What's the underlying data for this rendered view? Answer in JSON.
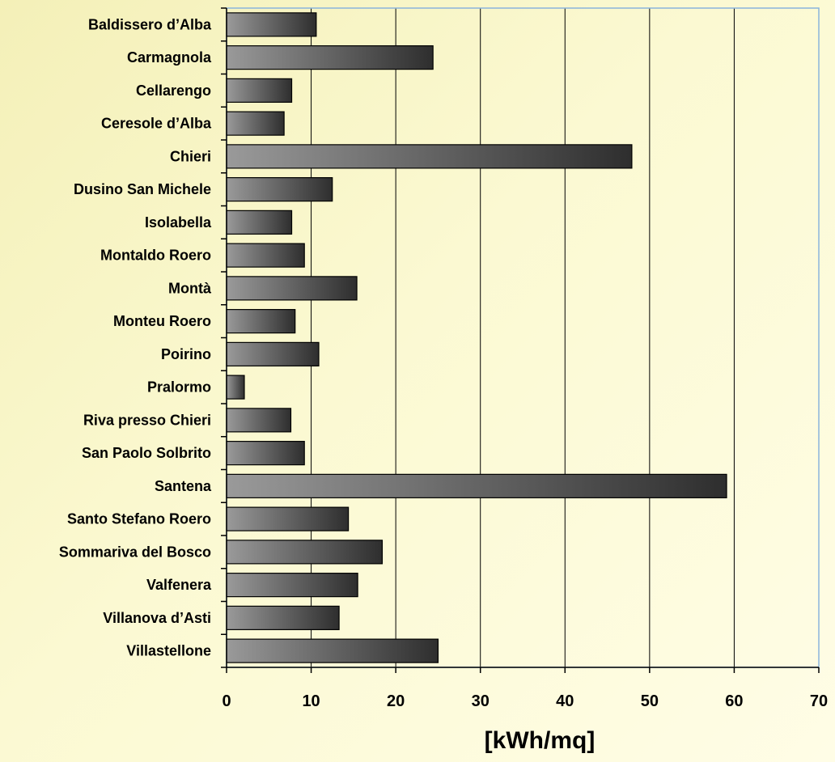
{
  "chart_data": {
    "type": "bar",
    "orientation": "horizontal",
    "categories": [
      "Baldissero d’Alba",
      "Carmagnola",
      "Cellarengo",
      "Ceresole d’Alba",
      "Chieri",
      "Dusino San Michele",
      "Isolabella",
      "Montaldo Roero",
      "Montà",
      "Monteu Roero",
      "Poirino",
      "Pralormo",
      "Riva presso Chieri",
      "San Paolo Solbrito",
      "Santena",
      "Santo Stefano Roero",
      "Sommariva del Bosco",
      "Valfenera",
      "Villanova d’Asti",
      "Villastellone"
    ],
    "values": [
      10.6,
      24.4,
      7.7,
      6.8,
      47.9,
      12.5,
      7.7,
      9.2,
      15.4,
      8.1,
      10.9,
      2.1,
      7.6,
      9.2,
      59.1,
      14.4,
      18.4,
      15.5,
      13.3,
      25.0
    ],
    "xlabel": "[kWh/mq]",
    "xlim": [
      0,
      70
    ],
    "xticks": [
      "0",
      "10",
      "20",
      "30",
      "40",
      "50",
      "60",
      "70"
    ],
    "grid": "vertical",
    "bar_gradient": [
      "#9a9a9a",
      "#2e2e2e"
    ],
    "plot_border_color": "#8ab4dc"
  }
}
